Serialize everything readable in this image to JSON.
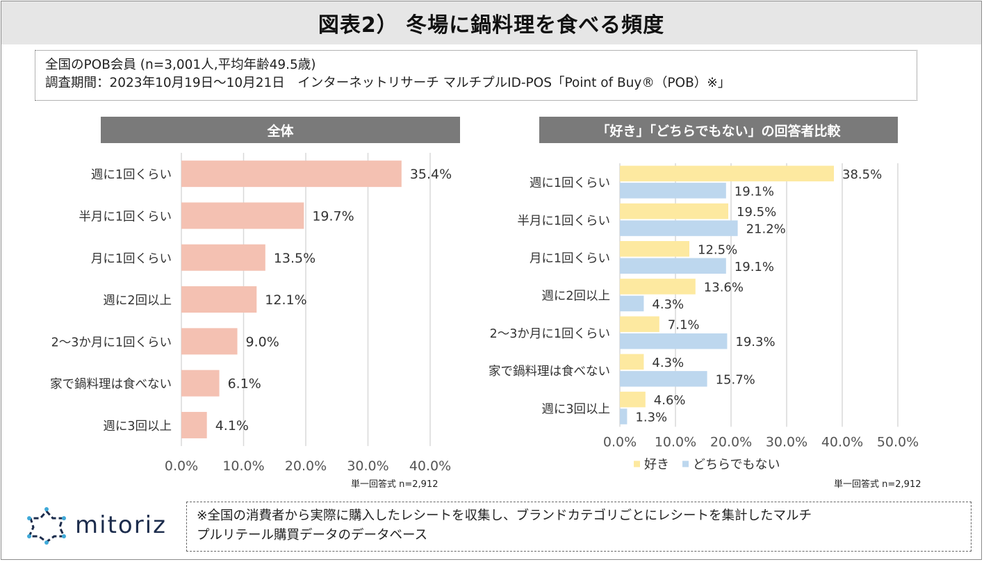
{
  "title": "図表2） 冬場に鍋料理を食べる頻度",
  "info": {
    "line1": "全国のPOB会員 (n=3,001人,平均年齢49.5歳)",
    "line2": "調査期間：2023年10月19日～10月21日　インターネットリサーチ マルチプルID-POS「Point of Buy®（POB）※」"
  },
  "left_panel": {
    "header": "全体",
    "note": "単一回答式 n=2,912"
  },
  "right_panel": {
    "header": "「好き」「どちらでもない」の回答者比較",
    "note": "単一回答式 n=2,912"
  },
  "logo": {
    "text": "mitoriz"
  },
  "footnote": {
    "line1": "※全国の消費者から実際に購入したレシートを収集し、ブランドカテゴリごとにレシートを集計したマルチ",
    "line2": "プルリテール購買データのデータベース"
  },
  "colors": {
    "overall": "#f4c1b2",
    "like": "#fde9a0",
    "neutral": "#bdd7ee",
    "grid": "#d9d9d9",
    "header": "#7a7a7a"
  },
  "chart_data": [
    {
      "type": "bar",
      "orientation": "horizontal",
      "title": "全体",
      "categories": [
        "週に1回くらい",
        "半月に1回くらい",
        "月に1回くらい",
        "週に2回以上",
        "2～3か月に1回くらい",
        "家で鍋料理は食べない",
        "週に3回以上"
      ],
      "values": [
        35.4,
        19.7,
        13.5,
        12.1,
        9.0,
        6.1,
        4.1
      ],
      "value_labels": [
        "35.4%",
        "19.7%",
        "13.5%",
        "12.1%",
        "9.0%",
        "6.1%",
        "4.1%"
      ],
      "xlim": [
        0,
        40
      ],
      "xticks": [
        "0.0%",
        "10.0%",
        "20.0%",
        "30.0%",
        "40.0%"
      ],
      "grid": true
    },
    {
      "type": "bar",
      "orientation": "horizontal",
      "title": "「好き」「どちらでもない」の回答者比較",
      "categories": [
        "週に1回くらい",
        "半月に1回くらい",
        "月に1回くらい",
        "週に2回以上",
        "2～3か月に1回くらい",
        "家で鍋料理は食べない",
        "週に3回以上"
      ],
      "series": [
        {
          "name": "好き",
          "values": [
            38.5,
            19.5,
            12.5,
            13.6,
            7.1,
            4.3,
            4.6
          ],
          "value_labels": [
            "38.5%",
            "19.5%",
            "12.5%",
            "13.6%",
            "7.1%",
            "4.3%",
            "4.6%"
          ]
        },
        {
          "name": "どちらでもない",
          "values": [
            19.1,
            21.2,
            19.1,
            4.3,
            19.3,
            15.7,
            1.3
          ],
          "value_labels": [
            "19.1%",
            "21.2%",
            "19.1%",
            "4.3%",
            "19.3%",
            "15.7%",
            "1.3%"
          ]
        }
      ],
      "xlim": [
        0,
        50
      ],
      "xticks": [
        "0.0%",
        "10.0%",
        "20.0%",
        "30.0%",
        "40.0%",
        "50.0%"
      ],
      "legend": "bottom",
      "grid": true
    }
  ]
}
